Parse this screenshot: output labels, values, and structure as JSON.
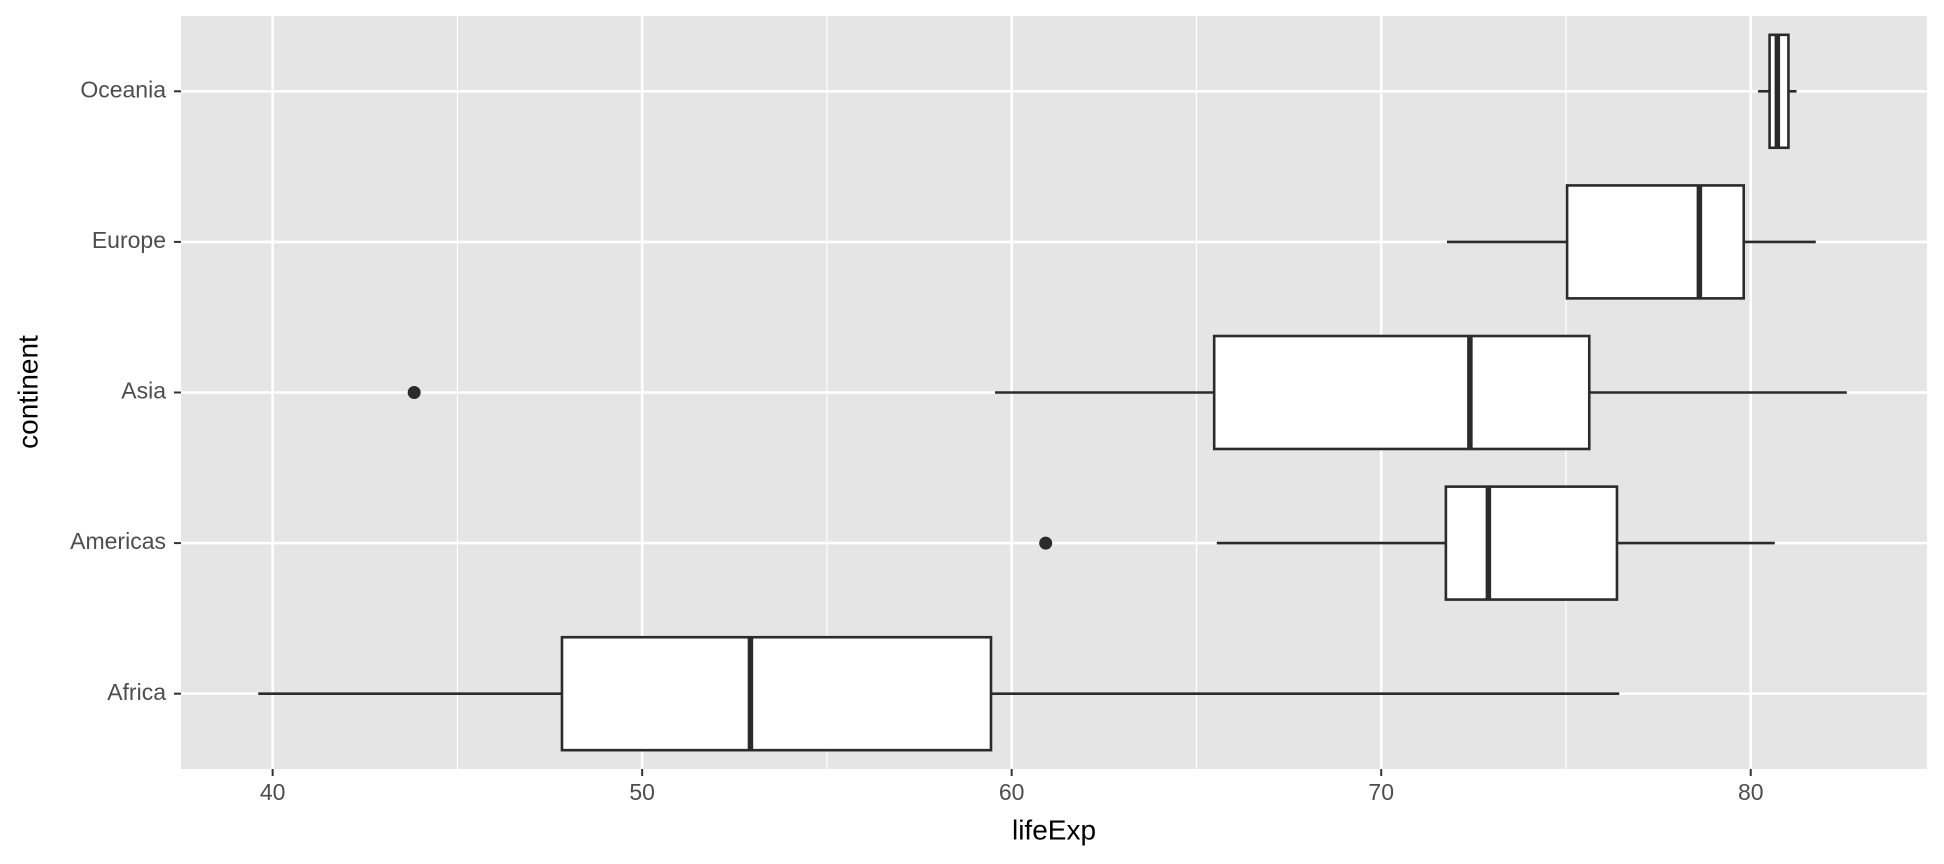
{
  "chart_data": {
    "type": "boxplot",
    "orientation": "horizontal",
    "xlabel": "lifeExp",
    "ylabel": "continent",
    "categories": [
      "Africa",
      "Americas",
      "Asia",
      "Europe",
      "Oceania"
    ],
    "boxes": [
      {
        "whisker_low": 39.61,
        "q1": 47.83,
        "median": 52.93,
        "q3": 59.44,
        "whisker_high": 76.44,
        "outliers": []
      },
      {
        "whisker_low": 65.55,
        "q1": 71.75,
        "median": 72.9,
        "q3": 76.38,
        "whisker_high": 80.65,
        "outliers": [
          60.92
        ]
      },
      {
        "whisker_low": 59.55,
        "q1": 65.48,
        "median": 72.4,
        "q3": 75.63,
        "whisker_high": 82.6,
        "outliers": [
          43.83
        ]
      },
      {
        "whisker_low": 71.78,
        "q1": 75.03,
        "median": 78.61,
        "q3": 79.81,
        "whisker_high": 81.76,
        "outliers": []
      },
      {
        "whisker_low": 80.2,
        "q1": 80.51,
        "median": 80.72,
        "q3": 81.02,
        "whisker_high": 81.24,
        "outliers": []
      }
    ],
    "xlim": [
      37.52,
      84.77
    ],
    "xticks": [
      40,
      50,
      60,
      70,
      80
    ],
    "grid": true,
    "panel_color": "#e5e5e5",
    "box_fill": "#ffffff",
    "line_color": "#2b2b2b"
  }
}
